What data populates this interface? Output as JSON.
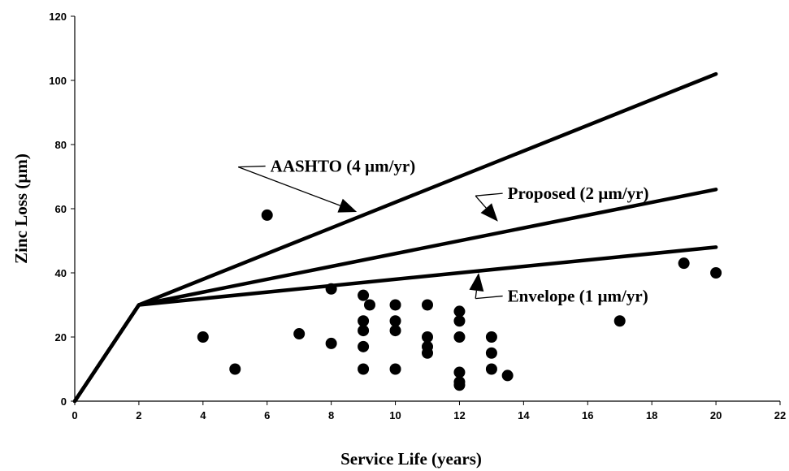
{
  "chart_data": {
    "type": "scatter",
    "xlabel": "Service Life (years)",
    "ylabel": "Zinc Loss (µm)",
    "xlim": [
      0,
      22
    ],
    "ylim": [
      0,
      120
    ],
    "xticks": [
      0,
      2,
      4,
      6,
      8,
      10,
      12,
      14,
      16,
      18,
      20,
      22
    ],
    "yticks": [
      0,
      20,
      40,
      60,
      80,
      100,
      120
    ],
    "grid": false,
    "points": {
      "x": [
        4,
        5,
        6,
        7,
        8,
        8,
        9,
        9,
        9,
        9,
        9,
        9.2,
        10,
        10,
        10,
        10,
        11,
        11,
        11,
        11,
        12,
        12,
        12,
        12,
        12,
        12,
        13,
        13,
        13,
        13.5,
        17,
        19,
        20
      ],
      "y": [
        20,
        10,
        58,
        21,
        35,
        18,
        33,
        25,
        22,
        17,
        10,
        30,
        30,
        25,
        22,
        10,
        30,
        20,
        17,
        15,
        28,
        25,
        20,
        9,
        6,
        5,
        20,
        15,
        10,
        8,
        25,
        43,
        40
      ]
    },
    "lines": [
      {
        "label": "AASHTO (4 µm/yr)",
        "x": [
          0,
          2,
          20
        ],
        "y": [
          0,
          30,
          102
        ]
      },
      {
        "label": "Proposed (2 µm/yr)",
        "x": [
          0,
          2,
          20
        ],
        "y": [
          0,
          30,
          66
        ]
      },
      {
        "label": "Envelope (1 µm/yr)",
        "x": [
          0,
          2,
          20
        ],
        "y": [
          0,
          30,
          48
        ]
      }
    ],
    "annotations": [
      {
        "text": "AASHTO (4 µm/yr)",
        "x": 6.1,
        "y": 71.5,
        "arrow_from": [
          5.1,
          73
        ],
        "arrow_to": [
          8.8,
          59
        ]
      },
      {
        "text": "Proposed (2 µm/yr)",
        "x": 13.5,
        "y": 63,
        "arrow_from": [
          12.5,
          64
        ],
        "arrow_to": [
          13.2,
          56
        ]
      },
      {
        "text": "Envelope (1 µm/yr)",
        "x": 13.5,
        "y": 31,
        "arrow_from": [
          12.5,
          32
        ],
        "arrow_to": [
          12.6,
          40
        ]
      }
    ]
  }
}
